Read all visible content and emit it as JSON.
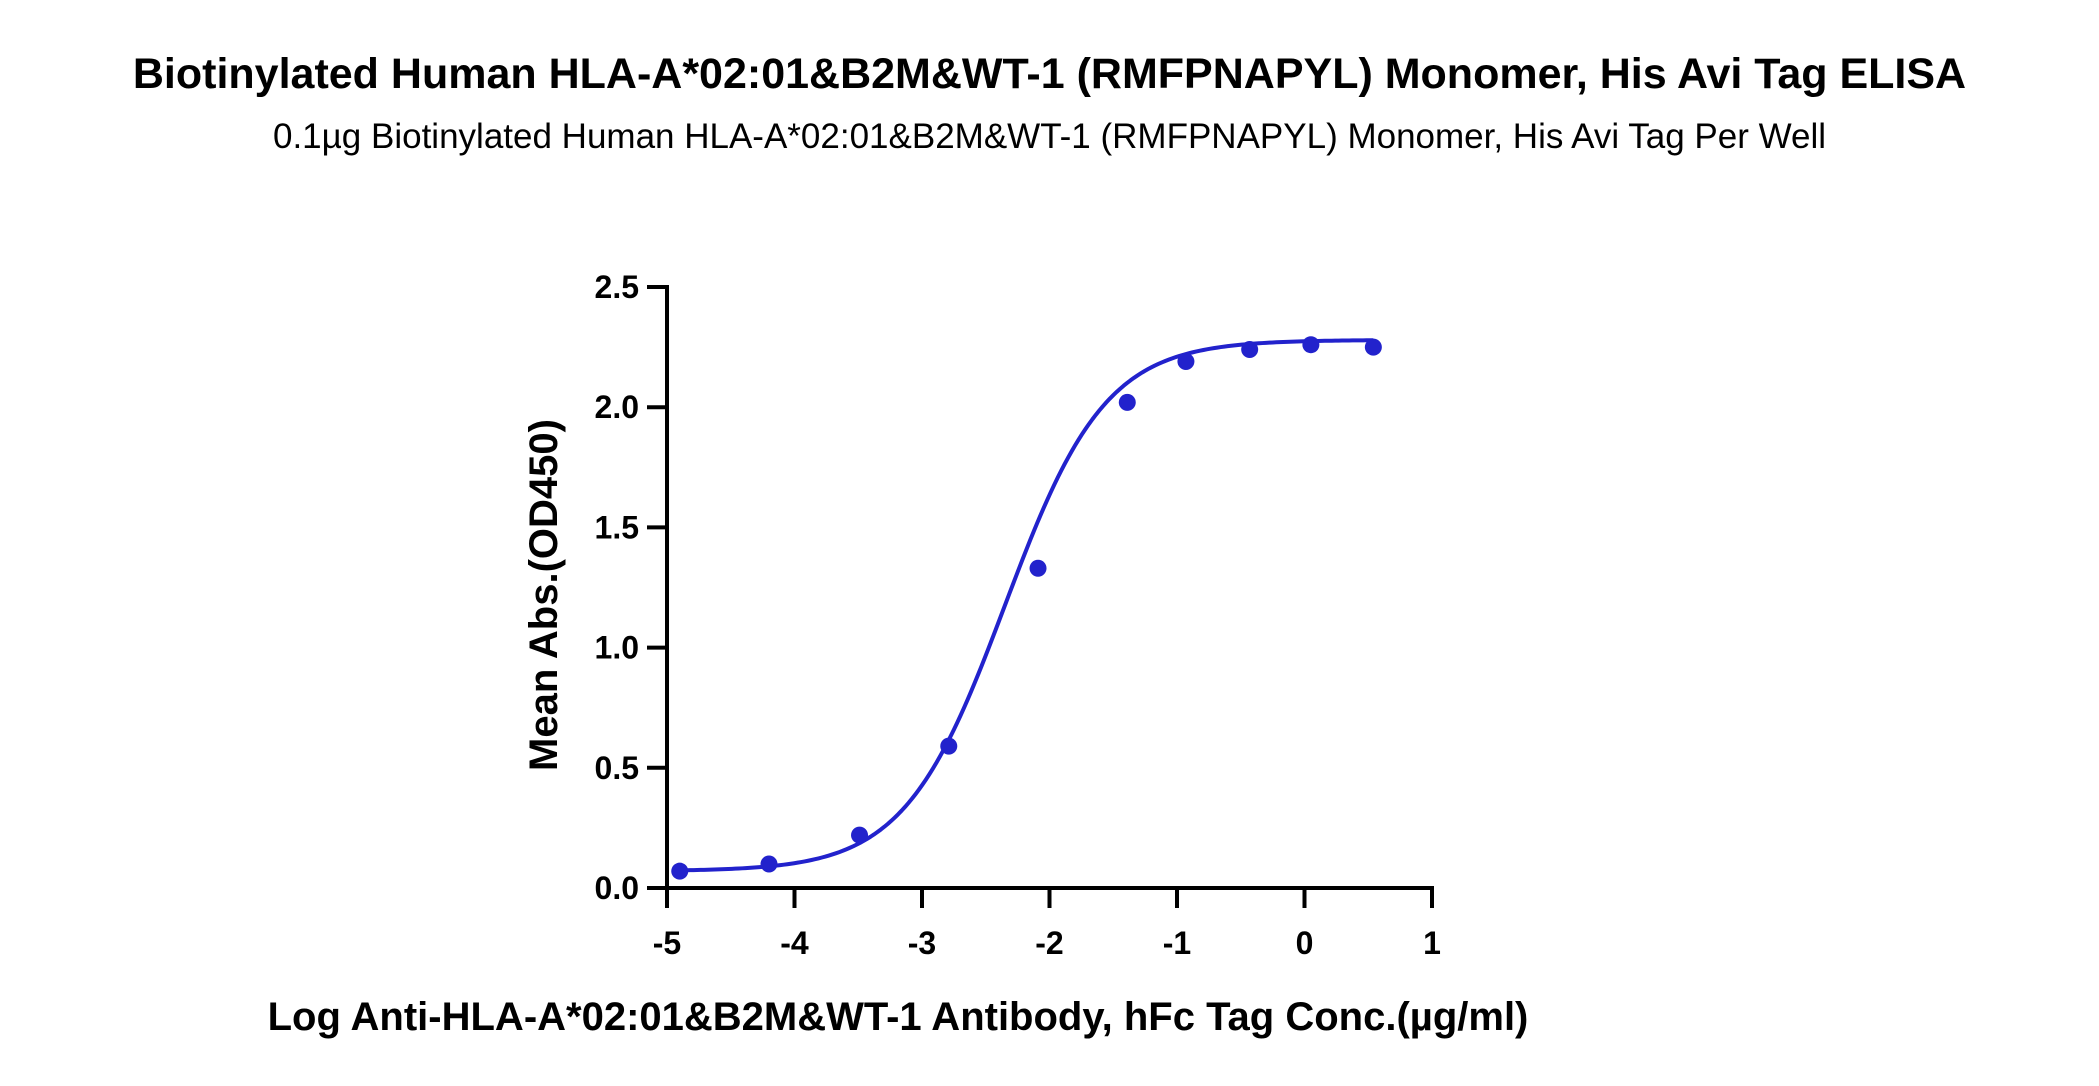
{
  "chart_data": {
    "type": "line",
    "title": "Biotinylated Human HLA-A*02:01&B2M&WT-1 (RMFPNAPYL) Monomer, His Avi Tag ELISA",
    "subtitle": "0.1µg Biotinylated Human HLA-A*02:01&B2M&WT-1 (RMFPNAPYL) Monomer, His Avi Tag Per Well",
    "xlabel": "Log Anti-HLA-A*02:01&B2M&WT-1 Antibody, hFc Tag Conc.(µg/ml)",
    "ylabel": "Mean Abs.(OD450)",
    "xlim": [
      -5,
      1
    ],
    "ylim": [
      0,
      2.5
    ],
    "xticks": [
      -5,
      -4,
      -3,
      -2,
      -1,
      0,
      1
    ],
    "xtick_labels": [
      "-5",
      "-4",
      "-3",
      "-2",
      "-1",
      "0",
      "1"
    ],
    "yticks": [
      0,
      0.5,
      1,
      1.5,
      2,
      2.5
    ],
    "ytick_labels": [
      "0.0",
      "0.5",
      "1.0",
      "1.5",
      "2.0",
      "2.5"
    ],
    "grid": false,
    "color": "#2222cc",
    "series": [
      {
        "x": [
          -4.9,
          -4.2,
          -3.49,
          -2.79,
          -2.09,
          -1.39,
          -0.93,
          -0.43,
          0.05,
          0.54
        ],
        "y": [
          0.07,
          0.1,
          0.22,
          0.59,
          1.33,
          2.02,
          2.19,
          2.24,
          2.26,
          2.25
        ]
      }
    ],
    "fit": {
      "model": "4PL",
      "bottom": 0.07,
      "top": 2.28,
      "log_ec50": -2.35,
      "hill_slope": 1.1
    }
  }
}
